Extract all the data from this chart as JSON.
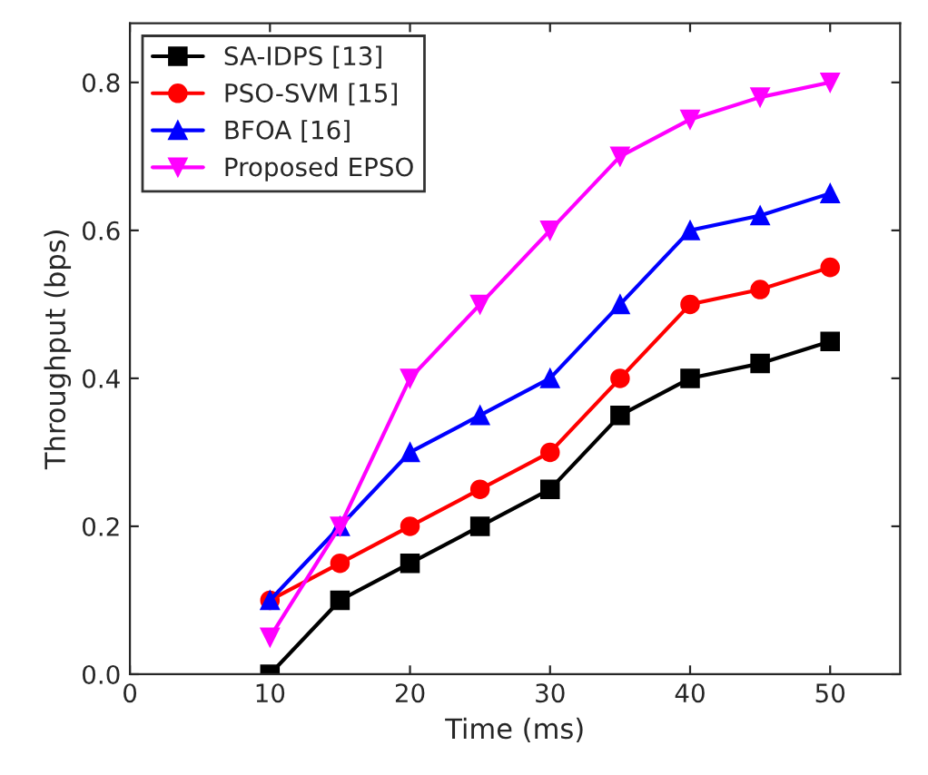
{
  "chart_data": {
    "type": "line",
    "xlabel": "Time (ms)",
    "ylabel": "Throughput (bps)",
    "x": [
      10,
      15,
      20,
      25,
      30,
      35,
      40,
      45,
      50
    ],
    "series": [
      {
        "name": "SA-IDPS [13]",
        "color": "#000000",
        "marker": "square",
        "values": [
          0.0,
          0.1,
          0.15,
          0.2,
          0.25,
          0.35,
          0.4,
          0.42,
          0.45
        ]
      },
      {
        "name": "PSO-SVM [15]",
        "color": "#ff0000",
        "marker": "circle",
        "values": [
          0.1,
          0.15,
          0.2,
          0.25,
          0.3,
          0.4,
          0.5,
          0.52,
          0.55
        ]
      },
      {
        "name": "BFOA [16]",
        "color": "#0000ff",
        "marker": "triangle",
        "values": [
          0.1,
          0.2,
          0.3,
          0.35,
          0.4,
          0.5,
          0.6,
          0.62,
          0.65
        ]
      },
      {
        "name": "Proposed EPSO",
        "color": "#ff00ff",
        "marker": "triangle_down",
        "values": [
          0.05,
          0.2,
          0.4,
          0.5,
          0.6,
          0.7,
          0.75,
          0.78,
          0.8
        ]
      }
    ],
    "xlim": [
      0,
      55
    ],
    "xticks": [
      0,
      10,
      20,
      30,
      40,
      50
    ],
    "ylim": [
      0,
      0.88
    ],
    "yticks": [
      {
        "value": 0,
        "label": "0.0"
      },
      0.2,
      0.4,
      0.6,
      0.8
    ],
    "line_style": "solid",
    "grid": false,
    "legend": "top left"
  }
}
